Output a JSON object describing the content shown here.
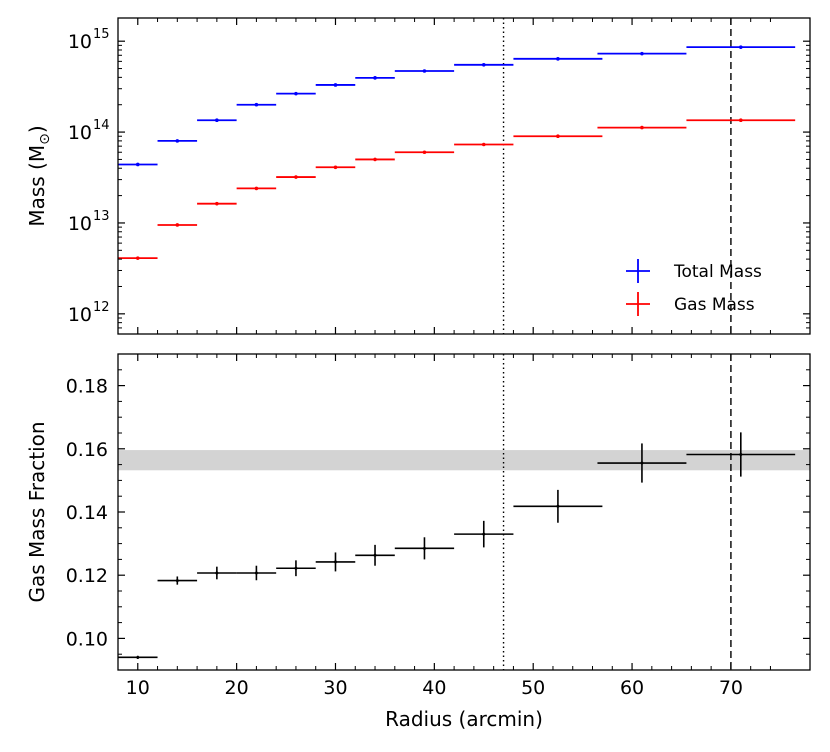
{
  "chart_data": [
    {
      "type": "scatter",
      "panel": "top",
      "ylabel": "Mass (M",
      "ylabel_sub": "⊙",
      "ylabel_close": ")",
      "yscale": "log",
      "ylim": [
        600000000000.0,
        1800000000000000.0
      ],
      "xlim": [
        8,
        78
      ],
      "ytick_values": [
        1000000000000.0,
        10000000000000.0,
        100000000000000.0,
        1000000000000000.0
      ],
      "ytick_labels": [
        {
          "base": "10",
          "exp": "12"
        },
        {
          "base": "10",
          "exp": "13"
        },
        {
          "base": "10",
          "exp": "14"
        },
        {
          "base": "10",
          "exp": "15"
        }
      ],
      "vlines": [
        {
          "x": 47,
          "style": "dotted"
        },
        {
          "x": 70,
          "style": "dashed"
        }
      ],
      "legend": {
        "position": "lower-right"
      },
      "series": [
        {
          "name": "Total Mass",
          "color": "#0000ff",
          "points": [
            {
              "x": 10,
              "xerr": 2,
              "y": 44000000000000.0
            },
            {
              "x": 14,
              "xerr": 2,
              "y": 80000000000000.0
            },
            {
              "x": 18,
              "xerr": 2,
              "y": 135000000000000.0
            },
            {
              "x": 22,
              "xerr": 2,
              "y": 200000000000000.0
            },
            {
              "x": 26,
              "xerr": 2,
              "y": 265000000000000.0
            },
            {
              "x": 30,
              "xerr": 2,
              "y": 330000000000000.0
            },
            {
              "x": 34,
              "xerr": 2,
              "y": 395000000000000.0
            },
            {
              "x": 39,
              "xerr": 3,
              "y": 470000000000000.0
            },
            {
              "x": 45,
              "xerr": 3,
              "y": 550000000000000.0
            },
            {
              "x": 52.5,
              "xerr": 4.5,
              "y": 640000000000000.0
            },
            {
              "x": 61,
              "xerr": 4.5,
              "y": 730000000000000.0
            },
            {
              "x": 71,
              "xerr": 5.5,
              "y": 860000000000000.0
            }
          ]
        },
        {
          "name": "Gas Mass",
          "color": "#ff0000",
          "points": [
            {
              "x": 10,
              "xerr": 2,
              "y": 4100000000000.0
            },
            {
              "x": 14,
              "xerr": 2,
              "y": 9500000000000.0
            },
            {
              "x": 18,
              "xerr": 2,
              "y": 16300000000000.0
            },
            {
              "x": 22,
              "xerr": 2,
              "y": 24000000000000.0
            },
            {
              "x": 26,
              "xerr": 2,
              "y": 32000000000000.0
            },
            {
              "x": 30,
              "xerr": 2,
              "y": 41000000000000.0
            },
            {
              "x": 34,
              "xerr": 2,
              "y": 50000000000000.0
            },
            {
              "x": 39,
              "xerr": 3,
              "y": 60000000000000.0
            },
            {
              "x": 45,
              "xerr": 3,
              "y": 73000000000000.0
            },
            {
              "x": 52.5,
              "xerr": 4.5,
              "y": 90000000000000.0
            },
            {
              "x": 61,
              "xerr": 4.5,
              "y": 112000000000000.0
            },
            {
              "x": 71,
              "xerr": 5.5,
              "y": 135000000000000.0
            }
          ]
        }
      ]
    },
    {
      "type": "scatter",
      "panel": "bottom",
      "xlabel": "Radius (arcmin)",
      "ylabel": "Gas Mass Fraction",
      "xlim": [
        8,
        78
      ],
      "ylim": [
        0.09,
        0.19
      ],
      "xtick_values": [
        10,
        20,
        30,
        40,
        50,
        60,
        70
      ],
      "xtick_labels": [
        "10",
        "20",
        "30",
        "40",
        "50",
        "60",
        "70"
      ],
      "ytick_values": [
        0.1,
        0.12,
        0.14,
        0.16,
        0.18
      ],
      "ytick_labels": [
        "0.10",
        "0.12",
        "0.14",
        "0.16",
        "0.18"
      ],
      "band": {
        "y0": 0.1532,
        "y1": 0.1596,
        "color": "#d3d3d3"
      },
      "vlines": [
        {
          "x": 47,
          "style": "dotted"
        },
        {
          "x": 70,
          "style": "dashed"
        }
      ],
      "series": [
        {
          "name": "Gas Mass Fraction",
          "color": "#000000",
          "points": [
            {
              "x": 10,
              "xerr": 2,
              "y": 0.094,
              "yerr": 0.0005
            },
            {
              "x": 14,
              "xerr": 2,
              "y": 0.1183,
              "yerr": 0.0013
            },
            {
              "x": 18,
              "xerr": 2,
              "y": 0.1207,
              "yerr": 0.002
            },
            {
              "x": 22,
              "xerr": 2,
              "y": 0.1207,
              "yerr": 0.0023
            },
            {
              "x": 26,
              "xerr": 2,
              "y": 0.1222,
              "yerr": 0.0025
            },
            {
              "x": 30,
              "xerr": 2,
              "y": 0.1242,
              "yerr": 0.003
            },
            {
              "x": 34,
              "xerr": 2,
              "y": 0.1263,
              "yerr": 0.0033
            },
            {
              "x": 39,
              "xerr": 3,
              "y": 0.1285,
              "yerr": 0.0035
            },
            {
              "x": 45,
              "xerr": 3,
              "y": 0.133,
              "yerr": 0.0042
            },
            {
              "x": 52.5,
              "xerr": 4.5,
              "y": 0.1418,
              "yerr": 0.0052
            },
            {
              "x": 61,
              "xerr": 4.5,
              "y": 0.1555,
              "yerr": 0.0062
            },
            {
              "x": 71,
              "xerr": 5.5,
              "y": 0.1582,
              "yerr": 0.007
            }
          ]
        }
      ]
    }
  ]
}
